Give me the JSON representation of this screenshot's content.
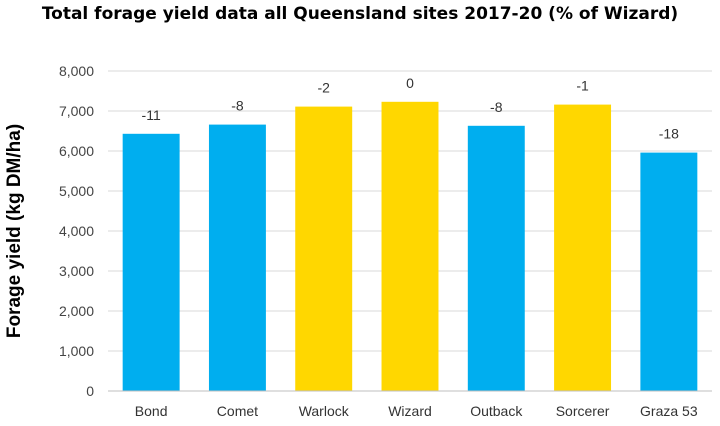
{
  "chart_data": {
    "type": "bar",
    "title": "Total forage yield data all Queensland sites 2017-20 (% of Wizard)",
    "ylabel": "Forage yield (kg DM/ha)",
    "xlabel": "",
    "categories": [
      "Bond",
      "Comet",
      "Warlock",
      "Wizard",
      "Outback",
      "Sorcerer",
      "Graza 53"
    ],
    "values": [
      6430,
      6660,
      7110,
      7230,
      6630,
      7160,
      5960
    ],
    "data_labels": [
      "-11",
      "-8",
      "-2",
      "0",
      "-8",
      "-1",
      "-18"
    ],
    "bar_colors": [
      "#00AEEF",
      "#00AEEF",
      "#FFD700",
      "#FFD700",
      "#00AEEF",
      "#FFD700",
      "#00AEEF"
    ],
    "ylim": [
      0,
      8000
    ],
    "yticks": [
      0,
      1000,
      2000,
      3000,
      4000,
      5000,
      6000,
      7000,
      8000
    ],
    "ytick_labels": [
      "0",
      "1,000",
      "2,000",
      "3,000",
      "4,000",
      "5,000",
      "6,000",
      "7,000",
      "8,000"
    ],
    "grid": true,
    "legend": "none"
  }
}
